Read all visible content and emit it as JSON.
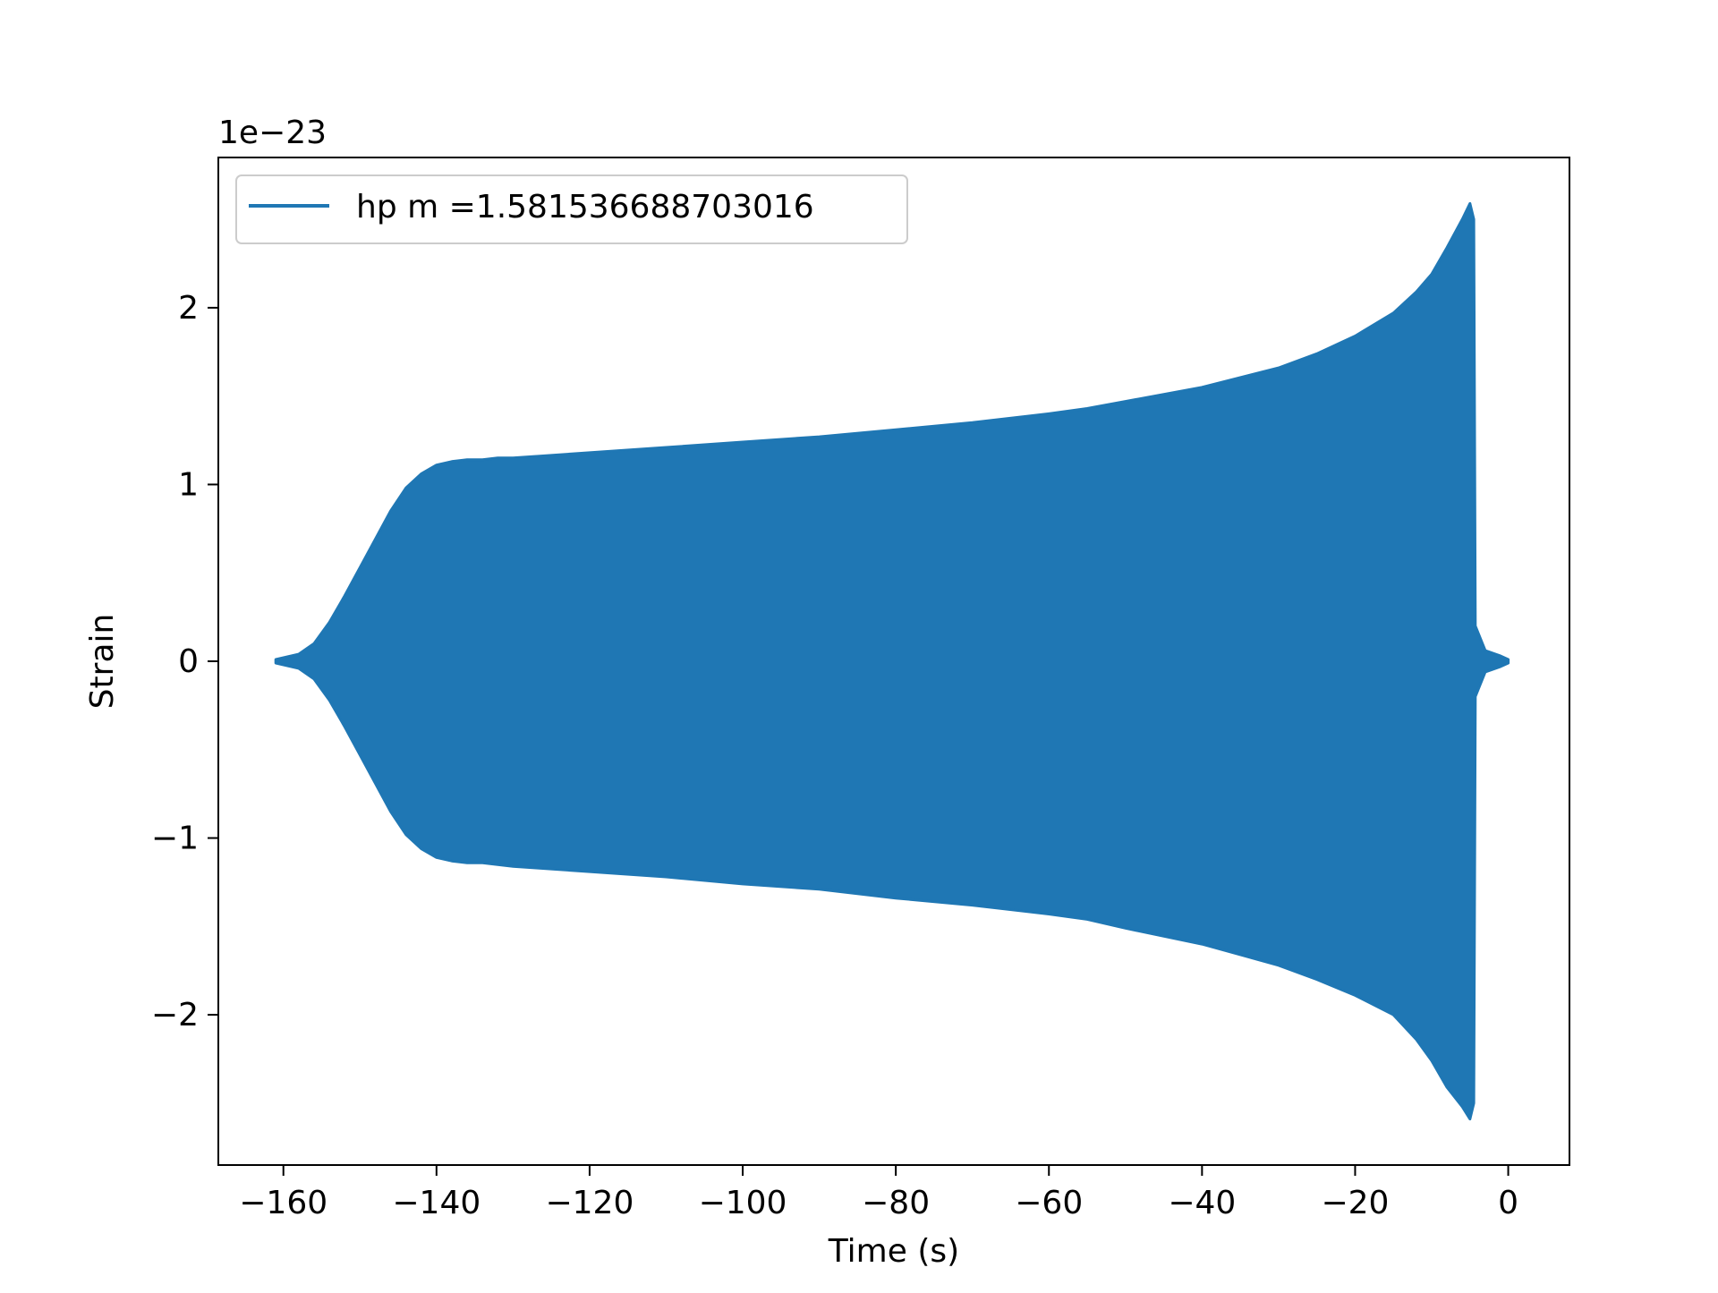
{
  "chart_data": {
    "type": "area",
    "title": "",
    "xlabel": "Time (s)",
    "ylabel": "Strain",
    "y_offset_label": "1e−23",
    "xlim": [
      -168.5,
      8.0
    ],
    "ylim": [
      -2.85,
      2.85
    ],
    "xticks": [
      -160,
      -140,
      -120,
      -100,
      -80,
      -60,
      -40,
      -20,
      0
    ],
    "xtick_labels": [
      "−160",
      "−140",
      "−120",
      "−100",
      "−80",
      "−60",
      "−40",
      "−20",
      "0"
    ],
    "yticks": [
      -2,
      -1,
      0,
      1,
      2
    ],
    "ytick_labels": [
      "−2",
      "−1",
      "0",
      "1",
      "2"
    ],
    "grid": false,
    "legend_position": "top-left",
    "series": [
      {
        "name": "hp m =1.581536688703016",
        "color": "#1f77b4",
        "x": [
          -161.0,
          -158.0,
          -156.0,
          -154.0,
          -152.0,
          -150.0,
          -148.0,
          -146.0,
          -144.0,
          -142.0,
          -140.0,
          -138.0,
          -136.0,
          -134.0,
          -132.0,
          -130.0,
          -120.0,
          -110.0,
          -100.0,
          -90.0,
          -80.0,
          -70.0,
          -60.0,
          -55.0,
          -50.0,
          -40.0,
          -30.0,
          -25.0,
          -20.0,
          -15.0,
          -12.0,
          -10.0,
          -8.0,
          -6.0,
          -5.0,
          -4.5,
          -4.3,
          -3.0,
          -1.0,
          0.0
        ],
        "upper": [
          0.01,
          0.04,
          0.1,
          0.22,
          0.37,
          0.53,
          0.69,
          0.85,
          0.98,
          1.06,
          1.11,
          1.13,
          1.14,
          1.14,
          1.15,
          1.15,
          1.18,
          1.21,
          1.24,
          1.27,
          1.31,
          1.35,
          1.4,
          1.43,
          1.47,
          1.55,
          1.66,
          1.74,
          1.84,
          1.97,
          2.09,
          2.19,
          2.34,
          2.5,
          2.59,
          2.5,
          0.2,
          0.06,
          0.03,
          0.01
        ],
        "lower": [
          -0.01,
          -0.04,
          -0.1,
          -0.22,
          -0.37,
          -0.53,
          -0.69,
          -0.85,
          -0.98,
          -1.06,
          -1.11,
          -1.13,
          -1.14,
          -1.14,
          -1.15,
          -1.16,
          -1.19,
          -1.22,
          -1.26,
          -1.29,
          -1.34,
          -1.38,
          -1.43,
          -1.46,
          -1.51,
          -1.6,
          -1.72,
          -1.8,
          -1.89,
          -2.0,
          -2.14,
          -2.26,
          -2.41,
          -2.52,
          -2.59,
          -2.5,
          -0.2,
          -0.06,
          -0.03,
          -0.01
        ]
      }
    ]
  }
}
